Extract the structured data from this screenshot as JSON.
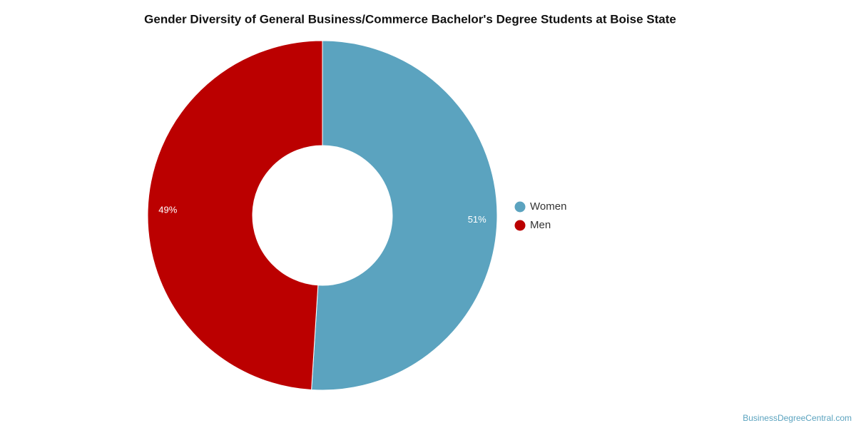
{
  "chart_data": {
    "type": "donut",
    "title": "Gender Diversity of General Business/Commerce Bachelor's Degree Students at Boise State",
    "categories": [
      "Women",
      "Men"
    ],
    "values": [
      51,
      49
    ],
    "value_labels": [
      "51%",
      "49%"
    ],
    "colors": [
      "#5ba3bf",
      "#bb0000"
    ],
    "legend": "right",
    "watermark": "BusinessDegreeCentral.com"
  }
}
